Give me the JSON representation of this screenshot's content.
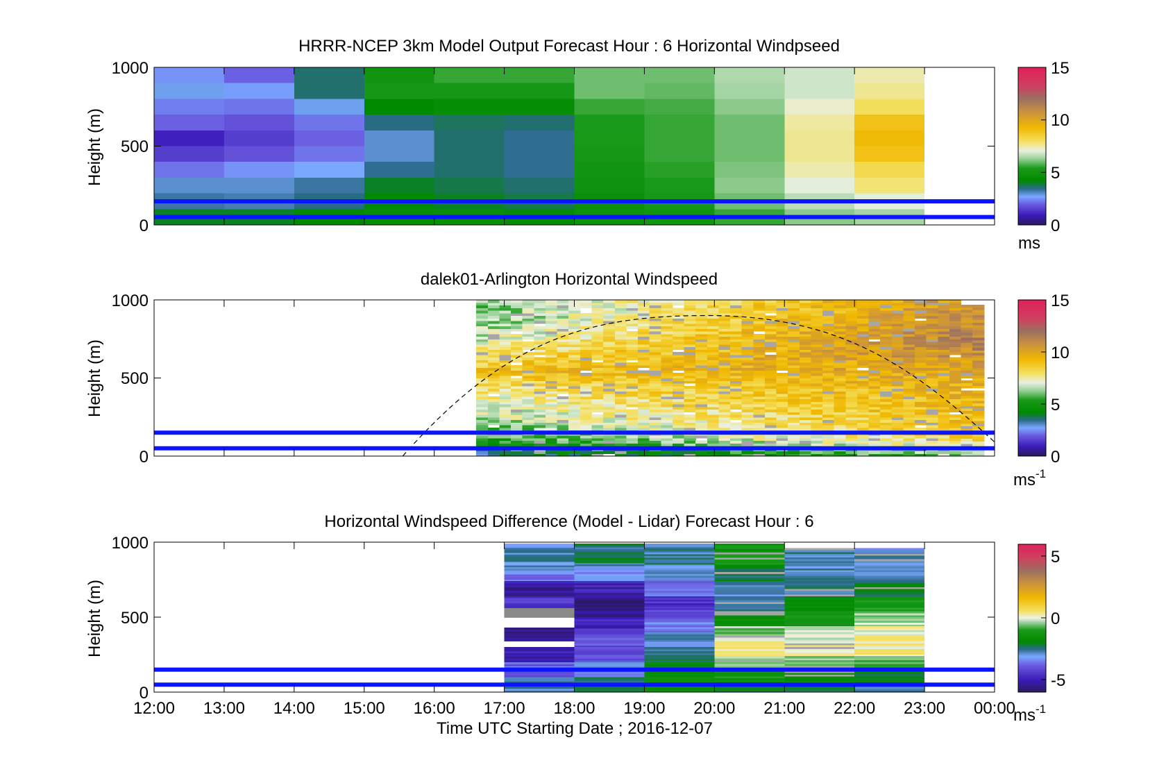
{
  "figure": {
    "xlabel": "Time UTC  Starting Date ; 2016-12-07",
    "xticks": [
      "12:00",
      "13:00",
      "14:00",
      "15:00",
      "16:00",
      "17:00",
      "18:00",
      "19:00",
      "20:00",
      "21:00",
      "22:00",
      "23:00",
      "00:00"
    ]
  },
  "chart_data": [
    {
      "type": "heatmap",
      "title": "HRRR-NCEP 3km Model Output   Forecast Hour : 6 Horizontal Windpseed",
      "ylabel": "Height (m)",
      "ylim": [
        0,
        1000
      ],
      "yticks": [
        "0",
        "500",
        "1000"
      ],
      "xlim_hours": [
        12,
        24
      ],
      "colorbar": {
        "ticks": [
          "0",
          "5",
          "10",
          "15"
        ],
        "unit": "ms",
        "range": [
          0,
          15
        ]
      },
      "reference_lines_m": [
        150,
        50
      ],
      "columns": [
        {
          "start": 12,
          "end": 13,
          "rows": [
            [
              900,
              1000,
              2.5
            ],
            [
              800,
              900,
              2.8
            ],
            [
              700,
              800,
              2.3
            ],
            [
              600,
              700,
              2.0
            ],
            [
              500,
              600,
              1.0
            ],
            [
              400,
              500,
              1.5
            ],
            [
              300,
              400,
              2.2
            ],
            [
              200,
              300,
              3.0
            ],
            [
              100,
              200,
              3.3
            ],
            [
              0,
              100,
              4.0
            ]
          ]
        },
        {
          "start": 13,
          "end": 14,
          "rows": [
            [
              900,
              1000,
              2.0
            ],
            [
              800,
              900,
              2.6
            ],
            [
              700,
              800,
              2.2
            ],
            [
              600,
              700,
              1.8
            ],
            [
              500,
              600,
              1.5
            ],
            [
              400,
              500,
              1.8
            ],
            [
              300,
              400,
              2.5
            ],
            [
              200,
              300,
              3.0
            ],
            [
              100,
              200,
              3.2
            ],
            [
              0,
              100,
              4.0
            ]
          ]
        },
        {
          "start": 14,
          "end": 15,
          "rows": [
            [
              900,
              1000,
              3.6
            ],
            [
              800,
              900,
              3.6
            ],
            [
              700,
              800,
              2.8
            ],
            [
              600,
              700,
              2.2
            ],
            [
              500,
              600,
              2.0
            ],
            [
              400,
              500,
              2.2
            ],
            [
              300,
              400,
              2.7
            ],
            [
              200,
              300,
              3.3
            ],
            [
              100,
              200,
              3.5
            ],
            [
              0,
              100,
              4.2
            ]
          ]
        },
        {
          "start": 15,
          "end": 16,
          "rows": [
            [
              900,
              1000,
              5.0
            ],
            [
              800,
              900,
              5.2
            ],
            [
              700,
              800,
              4.2
            ],
            [
              600,
              700,
              3.5
            ],
            [
              500,
              600,
              3.0
            ],
            [
              400,
              500,
              3.0
            ],
            [
              300,
              400,
              3.4
            ],
            [
              200,
              300,
              4.0
            ],
            [
              100,
              200,
              4.2
            ],
            [
              0,
              100,
              4.5
            ]
          ]
        },
        {
          "start": 16,
          "end": 17,
          "rows": [
            [
              900,
              1000,
              5.6
            ],
            [
              800,
              900,
              5.2
            ],
            [
              700,
              800,
              4.5
            ],
            [
              600,
              700,
              3.7
            ],
            [
              500,
              600,
              3.6
            ],
            [
              400,
              500,
              3.6
            ],
            [
              300,
              400,
              3.6
            ],
            [
              200,
              300,
              3.8
            ],
            [
              100,
              200,
              4.0
            ],
            [
              0,
              100,
              4.6
            ]
          ]
        },
        {
          "start": 17,
          "end": 18,
          "rows": [
            [
              900,
              1000,
              5.6
            ],
            [
              800,
              900,
              5.2
            ],
            [
              700,
              800,
              4.5
            ],
            [
              600,
              700,
              3.6
            ],
            [
              500,
              600,
              3.4
            ],
            [
              400,
              500,
              3.4
            ],
            [
              300,
              400,
              3.4
            ],
            [
              200,
              300,
              3.6
            ],
            [
              100,
              200,
              3.8
            ],
            [
              0,
              100,
              4.4
            ]
          ]
        },
        {
          "start": 18,
          "end": 19,
          "rows": [
            [
              900,
              1000,
              6.0
            ],
            [
              800,
              900,
              6.0
            ],
            [
              700,
              800,
              5.6
            ],
            [
              600,
              700,
              5.4
            ],
            [
              500,
              600,
              5.3
            ],
            [
              400,
              500,
              5.2
            ],
            [
              300,
              400,
              5.0
            ],
            [
              200,
              300,
              4.9
            ],
            [
              100,
              200,
              4.6
            ],
            [
              0,
              100,
              4.8
            ]
          ]
        },
        {
          "start": 19,
          "end": 20,
          "rows": [
            [
              900,
              1000,
              6.0
            ],
            [
              800,
              900,
              5.9
            ],
            [
              700,
              800,
              5.7
            ],
            [
              600,
              700,
              5.6
            ],
            [
              500,
              600,
              5.6
            ],
            [
              400,
              500,
              5.6
            ],
            [
              300,
              400,
              5.5
            ],
            [
              200,
              300,
              5.4
            ],
            [
              100,
              200,
              5.2
            ],
            [
              0,
              100,
              5.0
            ]
          ]
        },
        {
          "start": 20,
          "end": 21,
          "rows": [
            [
              900,
              1000,
              6.5
            ],
            [
              800,
              900,
              6.4
            ],
            [
              700,
              800,
              6.2
            ],
            [
              600,
              700,
              6.0
            ],
            [
              500,
              600,
              6.0
            ],
            [
              400,
              500,
              6.0
            ],
            [
              300,
              400,
              6.1
            ],
            [
              200,
              300,
              6.2
            ],
            [
              100,
              200,
              6.0
            ],
            [
              0,
              100,
              5.6
            ]
          ]
        },
        {
          "start": 21,
          "end": 22,
          "rows": [
            [
              900,
              1000,
              6.8
            ],
            [
              800,
              900,
              6.8
            ],
            [
              700,
              800,
              7.2
            ],
            [
              600,
              700,
              7.5
            ],
            [
              500,
              600,
              7.6
            ],
            [
              400,
              500,
              7.6
            ],
            [
              300,
              400,
              7.4
            ],
            [
              200,
              300,
              7.0
            ],
            [
              100,
              200,
              6.6
            ],
            [
              0,
              100,
              6.2
            ]
          ]
        },
        {
          "start": 22,
          "end": 23,
          "rows": [
            [
              900,
              1000,
              7.4
            ],
            [
              800,
              900,
              7.6
            ],
            [
              700,
              800,
              8.0
            ],
            [
              600,
              700,
              9.0
            ],
            [
              500,
              600,
              9.2
            ],
            [
              400,
              500,
              9.0
            ],
            [
              300,
              400,
              8.2
            ],
            [
              200,
              300,
              7.8
            ],
            [
              100,
              200,
              7.0
            ],
            [
              0,
              100,
              6.4
            ]
          ]
        }
      ]
    },
    {
      "type": "heatmap",
      "title": "dalek01-Arlington  Horizontal Windspeed",
      "ylabel": "Height (m)",
      "ylim": [
        0,
        1000
      ],
      "yticks": [
        "0",
        "500",
        "1000"
      ],
      "xlim_hours": [
        12,
        24
      ],
      "colorbar": {
        "ticks": [
          "0",
          "5",
          "10",
          "15"
        ],
        "unit": "ms",
        "unit_sup": "-1",
        "range": [
          0,
          15
        ]
      },
      "reference_lines_m": [
        150,
        50
      ],
      "data_window_hours": [
        16.6,
        23.85
      ],
      "data_top_m": [
        [
          16.6,
          1000
        ],
        [
          23.5,
          1000
        ],
        [
          23.85,
          970
        ]
      ],
      "profiles": [
        {
          "h": 950,
          "start": 6.0,
          "end": 10.6
        },
        {
          "h": 850,
          "start": 6.2,
          "end": 11.0
        },
        {
          "h": 750,
          "start": 6.8,
          "end": 11.4
        },
        {
          "h": 650,
          "start": 8.0,
          "end": 10.8
        },
        {
          "h": 550,
          "start": 9.0,
          "end": 10.0
        },
        {
          "h": 450,
          "start": 8.0,
          "end": 9.6
        },
        {
          "h": 350,
          "start": 7.2,
          "end": 9.4
        },
        {
          "h": 250,
          "start": 6.6,
          "end": 9.2
        },
        {
          "h": 150,
          "start": 5.8,
          "end": 8.8
        },
        {
          "h": 80,
          "start": 4.8,
          "end": 7.8
        },
        {
          "h": 20,
          "start": 3.4,
          "end": 6.4
        }
      ],
      "boundary_layer_curve": {
        "x_hours": [
          15.55,
          19.9,
          24.0
        ],
        "y_m": [
          0,
          900,
          90
        ]
      }
    },
    {
      "type": "heatmap",
      "title": "Horizontal Windspeed Difference (Model - Lidar) Forecast Hour : 6",
      "ylabel": "Height (m)",
      "ylim": [
        0,
        1000
      ],
      "yticks": [
        "0",
        "500",
        "1000"
      ],
      "xlim_hours": [
        12,
        24
      ],
      "colorbar": {
        "ticks": [
          "-5",
          "0",
          "5"
        ],
        "unit": "ms",
        "unit_sup": "-1",
        "range": [
          -6,
          6
        ]
      },
      "reference_lines_m": [
        150,
        50
      ],
      "columns": [
        {
          "start": 17,
          "end": 18,
          "top": 990,
          "rows": [
            [
              800,
              990,
              -2.8
            ],
            [
              740,
              800,
              -3.6
            ],
            [
              640,
              740,
              -5.2
            ],
            [
              560,
              640,
              -4.6
            ],
            [
              500,
              560,
              -6.2
            ],
            [
              430,
              500,
              null
            ],
            [
              340,
              430,
              -5.4
            ],
            [
              300,
              340,
              null
            ],
            [
              200,
              300,
              -5.0
            ],
            [
              100,
              200,
              -3.8
            ],
            [
              0,
              100,
              -2.6
            ]
          ]
        },
        {
          "start": 18,
          "end": 19,
          "top": 990,
          "rows": [
            [
              840,
              990,
              -2.4
            ],
            [
              740,
              840,
              -3.5
            ],
            [
              640,
              740,
              -5.0
            ],
            [
              500,
              640,
              -5.6
            ],
            [
              400,
              500,
              -4.8
            ],
            [
              300,
              400,
              -4.0
            ],
            [
              200,
              300,
              -4.2
            ],
            [
              100,
              200,
              -3.2
            ],
            [
              0,
              100,
              -2.4
            ]
          ]
        },
        {
          "start": 19,
          "end": 20,
          "top": 990,
          "rows": [
            [
              840,
              990,
              -2.6
            ],
            [
              740,
              840,
              -3.0
            ],
            [
              640,
              740,
              -3.8
            ],
            [
              560,
              640,
              -4.6
            ],
            [
              480,
              560,
              -4.2
            ],
            [
              400,
              480,
              -3.4
            ],
            [
              300,
              400,
              -3.0
            ],
            [
              200,
              300,
              -2.4
            ],
            [
              100,
              200,
              -2.0
            ],
            [
              0,
              100,
              -1.6
            ]
          ]
        },
        {
          "start": 20,
          "end": 21,
          "top": 990,
          "rows": [
            [
              840,
              990,
              -1.4
            ],
            [
              740,
              840,
              -2.2
            ],
            [
              640,
              740,
              -2.8
            ],
            [
              540,
              640,
              -2.4
            ],
            [
              440,
              540,
              -1.6
            ],
            [
              340,
              440,
              -0.4
            ],
            [
              240,
              340,
              0.3
            ],
            [
              140,
              240,
              -0.2
            ],
            [
              60,
              140,
              -1.2
            ],
            [
              0,
              60,
              -2.0
            ]
          ]
        },
        {
          "start": 21,
          "end": 22,
          "top": 960,
          "rows": [
            [
              840,
              960,
              -2.6
            ],
            [
              740,
              840,
              -2.8
            ],
            [
              640,
              740,
              -2.6
            ],
            [
              540,
              640,
              -1.8
            ],
            [
              440,
              540,
              -1.0
            ],
            [
              340,
              440,
              -0.2
            ],
            [
              240,
              340,
              0.2
            ],
            [
              140,
              240,
              -0.6
            ],
            [
              60,
              140,
              -1.6
            ],
            [
              0,
              60,
              -2.2
            ]
          ]
        },
        {
          "start": 22,
          "end": 23,
          "top": 960,
          "rows": [
            [
              840,
              960,
              -3.0
            ],
            [
              740,
              840,
              -2.6
            ],
            [
              640,
              740,
              -2.2
            ],
            [
              540,
              640,
              -1.2
            ],
            [
              440,
              540,
              -0.4
            ],
            [
              340,
              440,
              0.2
            ],
            [
              240,
              340,
              0.4
            ],
            [
              140,
              240,
              -0.6
            ],
            [
              60,
              140,
              -2.0
            ],
            [
              0,
              60,
              -2.6
            ]
          ]
        }
      ]
    }
  ]
}
